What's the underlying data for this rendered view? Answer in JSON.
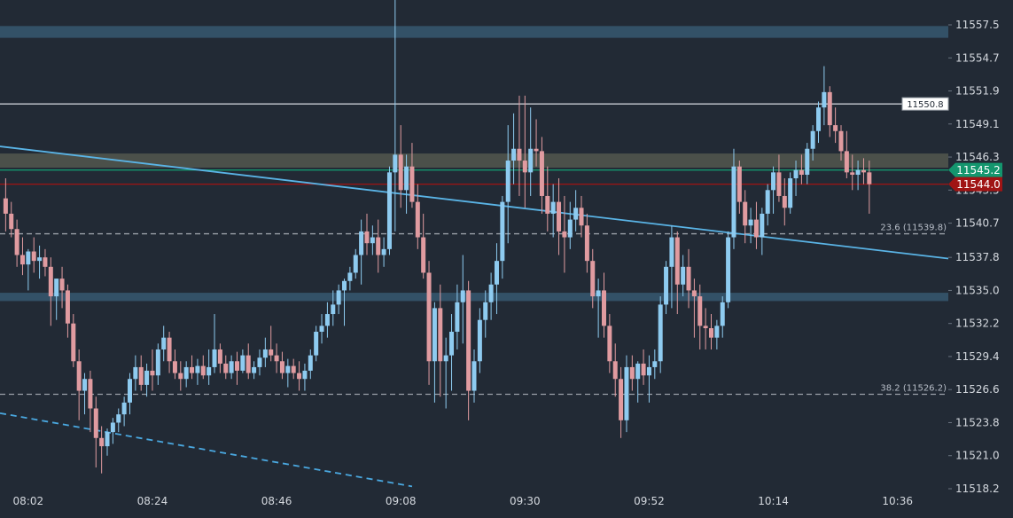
{
  "chart_data": {
    "type": "candlestick",
    "title": "",
    "xlabel": "",
    "ylabel": "",
    "ylim": [
      11518.2,
      11557.5
    ],
    "xlim": [
      "07:57",
      "10:45"
    ],
    "grid": false,
    "y_ticks": [
      "11557.5",
      "11554.7",
      "11551.9",
      "11549.1",
      "11546.3",
      "11543.5",
      "11540.7",
      "11537.8",
      "11535.0",
      "11532.2",
      "11529.4",
      "11526.6",
      "11523.8",
      "11521.0",
      "11518.2"
    ],
    "x_ticks": [
      "08:02",
      "08:24",
      "08:46",
      "09:08",
      "09:30",
      "09:52",
      "10:14",
      "10:36"
    ],
    "candles": [
      [
        "07:58",
        11542.8,
        11544.5,
        11540.0,
        11541.5
      ],
      [
        "07:59",
        11541.5,
        11542.5,
        11539.5,
        11540.2
      ],
      [
        "08:00",
        11540.2,
        11541.0,
        11537.0,
        11538.0
      ],
      [
        "08:01",
        11538.0,
        11539.5,
        11536.3,
        11537.2
      ],
      [
        "08:02",
        11537.2,
        11538.5,
        11535.0,
        11538.3
      ],
      [
        "08:03",
        11538.3,
        11539.5,
        11536.5,
        11537.5
      ],
      [
        "08:04",
        11537.5,
        11538.8,
        11536.0,
        11537.8
      ],
      [
        "08:05",
        11537.8,
        11538.5,
        11536.2,
        11537.0
      ],
      [
        "08:06",
        11537.0,
        11537.8,
        11532.0,
        11534.5
      ],
      [
        "08:07",
        11534.5,
        11536.0,
        11532.5,
        11536.0
      ],
      [
        "08:08",
        11536.0,
        11537.0,
        11533.5,
        11535.0
      ],
      [
        "08:09",
        11535.0,
        11535.5,
        11531.0,
        11532.2
      ],
      [
        "08:10",
        11532.2,
        11533.0,
        11528.5,
        11529.0
      ],
      [
        "08:11",
        11529.0,
        11530.0,
        11524.0,
        11526.5
      ],
      [
        "08:12",
        11526.5,
        11528.0,
        11524.5,
        11527.5
      ],
      [
        "08:13",
        11527.5,
        11528.2,
        11523.0,
        11525.0
      ],
      [
        "08:14",
        11525.0,
        11526.0,
        11520.0,
        11522.5
      ],
      [
        "08:15",
        11522.5,
        11523.5,
        11519.5,
        11521.8
      ],
      [
        "08:16",
        11521.8,
        11523.3,
        11521.0,
        11523.0
      ],
      [
        "08:17",
        11523.0,
        11524.2,
        11522.0,
        11523.8
      ],
      [
        "08:18",
        11523.8,
        11525.0,
        11523.0,
        11524.5
      ],
      [
        "08:19",
        11524.5,
        11526.0,
        11523.5,
        11525.5
      ],
      [
        "08:20",
        11525.5,
        11528.0,
        11524.5,
        11527.5
      ],
      [
        "08:21",
        11527.5,
        11529.5,
        11526.5,
        11528.5
      ],
      [
        "08:22",
        11528.5,
        11529.5,
        11526.5,
        11527.0
      ],
      [
        "08:23",
        11527.0,
        11528.8,
        11526.0,
        11528.2
      ],
      [
        "08:24",
        11528.2,
        11530.0,
        11526.5,
        11527.8
      ],
      [
        "08:25",
        11527.8,
        11530.5,
        11527.0,
        11530.0
      ],
      [
        "08:26",
        11530.0,
        11532.0,
        11529.0,
        11531.0
      ],
      [
        "08:27",
        11531.0,
        11531.5,
        11528.0,
        11529.0
      ],
      [
        "08:28",
        11529.0,
        11530.0,
        11527.5,
        11528.0
      ],
      [
        "08:29",
        11528.0,
        11529.0,
        11526.5,
        11527.5
      ],
      [
        "08:30",
        11527.5,
        11529.0,
        11526.8,
        11528.5
      ],
      [
        "08:31",
        11528.5,
        11529.5,
        11527.5,
        11528.0
      ],
      [
        "08:32",
        11528.0,
        11529.2,
        11527.0,
        11528.6
      ],
      [
        "08:33",
        11528.6,
        11529.5,
        11527.5,
        11527.8
      ],
      [
        "08:34",
        11527.8,
        11530.0,
        11527.0,
        11528.5
      ],
      [
        "08:35",
        11528.5,
        11533.0,
        11528.0,
        11530.0
      ],
      [
        "08:36",
        11530.0,
        11530.5,
        11528.0,
        11528.8
      ],
      [
        "08:37",
        11528.8,
        11529.5,
        11527.5,
        11528.0
      ],
      [
        "08:38",
        11528.0,
        11529.5,
        11527.5,
        11529.0
      ],
      [
        "08:39",
        11529.0,
        11529.8,
        11527.0,
        11528.2
      ],
      [
        "08:40",
        11528.2,
        11530.0,
        11528.0,
        11529.5
      ],
      [
        "08:41",
        11529.5,
        11530.5,
        11527.5,
        11528.0
      ],
      [
        "08:42",
        11528.0,
        11529.0,
        11527.5,
        11528.5
      ],
      [
        "08:43",
        11528.5,
        11530.0,
        11527.8,
        11529.3
      ],
      [
        "08:44",
        11529.3,
        11531.0,
        11528.5,
        11530.0
      ],
      [
        "08:45",
        11530.0,
        11532.0,
        11529.0,
        11529.5
      ],
      [
        "08:46",
        11529.5,
        11530.5,
        11528.0,
        11529.0
      ],
      [
        "08:47",
        11529.0,
        11529.8,
        11527.5,
        11528.0
      ],
      [
        "08:48",
        11528.0,
        11529.2,
        11526.8,
        11528.6
      ],
      [
        "08:49",
        11528.6,
        11529.2,
        11527.5,
        11528.0
      ],
      [
        "08:50",
        11528.0,
        11529.0,
        11526.5,
        11527.5
      ],
      [
        "08:51",
        11527.5,
        11528.8,
        11526.5,
        11528.2
      ],
      [
        "08:52",
        11528.2,
        11530.0,
        11527.5,
        11529.5
      ],
      [
        "08:53",
        11529.5,
        11532.0,
        11529.0,
        11531.5
      ],
      [
        "08:54",
        11531.5,
        11533.0,
        11530.5,
        11532.0
      ],
      [
        "08:55",
        11532.0,
        11534.0,
        11531.0,
        11533.0
      ],
      [
        "08:56",
        11533.0,
        11535.0,
        11532.0,
        11533.8
      ],
      [
        "08:57",
        11533.8,
        11535.5,
        11533.0,
        11535.0
      ],
      [
        "08:58",
        11535.0,
        11536.0,
        11532.0,
        11535.8
      ],
      [
        "08:59",
        11535.8,
        11537.0,
        11535.0,
        11536.5
      ],
      [
        "09:00",
        11536.5,
        11538.5,
        11536.0,
        11538.0
      ],
      [
        "09:01",
        11538.0,
        11541.0,
        11535.5,
        11540.0
      ],
      [
        "09:02",
        11540.0,
        11541.5,
        11538.0,
        11539.0
      ],
      [
        "09:03",
        11539.0,
        11540.5,
        11538.0,
        11539.5
      ],
      [
        "09:04",
        11539.5,
        11541.0,
        11536.5,
        11538.0
      ],
      [
        "09:05",
        11538.0,
        11539.5,
        11537.0,
        11538.5
      ],
      [
        "09:06",
        11538.5,
        11545.5,
        11538.0,
        11545.0
      ],
      [
        "09:07",
        11545.0,
        11561.0,
        11540.0,
        11546.5
      ],
      [
        "09:08",
        11546.5,
        11549.0,
        11542.0,
        11543.5
      ],
      [
        "09:09",
        11543.5,
        11546.5,
        11541.5,
        11545.5
      ],
      [
        "09:10",
        11545.5,
        11547.5,
        11542.0,
        11542.5
      ],
      [
        "09:11",
        11542.5,
        11544.0,
        11538.5,
        11539.5
      ],
      [
        "09:12",
        11539.5,
        11541.5,
        11536.0,
        11536.5
      ],
      [
        "09:13",
        11536.5,
        11537.5,
        11527.0,
        11529.0
      ],
      [
        "09:14",
        11529.0,
        11534.0,
        11525.5,
        11533.5
      ],
      [
        "09:15",
        11533.5,
        11535.5,
        11526.0,
        11529.0
      ],
      [
        "09:16",
        11529.0,
        11531.0,
        11525.0,
        11529.5
      ],
      [
        "09:17",
        11529.5,
        11533.0,
        11526.5,
        11531.5
      ],
      [
        "09:18",
        11531.5,
        11535.5,
        11530.0,
        11534.0
      ],
      [
        "09:19",
        11534.0,
        11538.0,
        11530.5,
        11535.0
      ],
      [
        "09:20",
        11535.0,
        11535.8,
        11524.0,
        11526.5
      ],
      [
        "09:21",
        11526.5,
        11530.0,
        11525.5,
        11529.0
      ],
      [
        "09:22",
        11529.0,
        11533.5,
        11528.0,
        11532.5
      ],
      [
        "09:23",
        11532.5,
        11535.0,
        11531.0,
        11534.0
      ],
      [
        "09:24",
        11534.0,
        11536.5,
        11532.5,
        11535.5
      ],
      [
        "09:25",
        11535.5,
        11539.0,
        11533.0,
        11537.5
      ],
      [
        "09:26",
        11537.5,
        11543.0,
        11536.0,
        11542.5
      ],
      [
        "09:27",
        11542.5,
        11549.0,
        11539.0,
        11546.0
      ],
      [
        "09:28",
        11546.0,
        11550.0,
        11544.0,
        11547.0
      ],
      [
        "09:29",
        11547.0,
        11551.5,
        11543.0,
        11546.0
      ],
      [
        "09:30",
        11546.0,
        11551.5,
        11542.0,
        11545.0
      ],
      [
        "09:31",
        11545.0,
        11550.5,
        11543.0,
        11547.0
      ],
      [
        "09:32",
        11547.0,
        11549.5,
        11545.5,
        11546.8
      ],
      [
        "09:33",
        11546.8,
        11548.0,
        11541.5,
        11543.0
      ],
      [
        "09:34",
        11543.0,
        11545.5,
        11540.0,
        11541.5
      ],
      [
        "09:35",
        11541.5,
        11544.0,
        11539.5,
        11542.5
      ],
      [
        "09:36",
        11542.5,
        11544.5,
        11538.0,
        11540.0
      ],
      [
        "09:37",
        11540.0,
        11543.0,
        11536.5,
        11539.5
      ],
      [
        "09:38",
        11539.5,
        11542.5,
        11538.5,
        11541.0
      ],
      [
        "09:39",
        11541.0,
        11543.5,
        11540.0,
        11542.0
      ],
      [
        "09:40",
        11542.0,
        11543.0,
        11539.5,
        11540.5
      ],
      [
        "09:41",
        11540.5,
        11541.5,
        11536.5,
        11537.5
      ],
      [
        "09:42",
        11537.5,
        11538.5,
        11533.5,
        11534.5
      ],
      [
        "09:43",
        11534.5,
        11536.0,
        11531.0,
        11535.0
      ],
      [
        "09:44",
        11535.0,
        11536.5,
        11531.0,
        11532.0
      ],
      [
        "09:45",
        11532.0,
        11533.0,
        11528.0,
        11529.0
      ],
      [
        "09:46",
        11529.0,
        11530.5,
        11526.0,
        11527.5
      ],
      [
        "09:47",
        11527.5,
        11528.5,
        11522.5,
        11524.0
      ],
      [
        "09:48",
        11524.0,
        11529.5,
        11523.0,
        11528.5
      ],
      [
        "09:49",
        11528.5,
        11529.5,
        11526.5,
        11527.5
      ],
      [
        "09:50",
        11527.5,
        11529.0,
        11525.5,
        11528.8
      ],
      [
        "09:51",
        11528.8,
        11530.0,
        11527.0,
        11527.8
      ],
      [
        "09:52",
        11527.8,
        11529.5,
        11525.5,
        11528.5
      ],
      [
        "09:53",
        11528.5,
        11530.0,
        11527.5,
        11529.0
      ],
      [
        "09:54",
        11529.0,
        11534.5,
        11528.0,
        11533.8
      ],
      [
        "09:55",
        11533.8,
        11537.5,
        11533.0,
        11537.0
      ],
      [
        "09:56",
        11537.0,
        11540.5,
        11533.5,
        11539.5
      ],
      [
        "09:57",
        11539.5,
        11540.0,
        11533.0,
        11535.5
      ],
      [
        "09:58",
        11535.5,
        11538.0,
        11534.5,
        11537.0
      ],
      [
        "09:59",
        11537.0,
        11538.5,
        11533.5,
        11535.0
      ],
      [
        "10:00",
        11535.0,
        11536.0,
        11531.0,
        11534.5
      ],
      [
        "10:01",
        11534.5,
        11535.5,
        11530.0,
        11532.0
      ],
      [
        "10:02",
        11532.0,
        11533.5,
        11530.0,
        11531.8
      ],
      [
        "10:03",
        11531.8,
        11533.0,
        11530.0,
        11531.0
      ],
      [
        "10:04",
        11531.0,
        11532.5,
        11530.0,
        11532.0
      ],
      [
        "10:05",
        11532.0,
        11534.5,
        11531.0,
        11534.0
      ],
      [
        "10:06",
        11534.0,
        11540.0,
        11533.5,
        11539.5
      ],
      [
        "10:07",
        11539.5,
        11547.0,
        11538.5,
        11545.5
      ],
      [
        "10:08",
        11545.5,
        11546.0,
        11541.5,
        11542.5
      ],
      [
        "10:09",
        11542.5,
        11543.5,
        11539.0,
        11540.5
      ],
      [
        "10:10",
        11540.5,
        11542.0,
        11539.0,
        11541.0
      ],
      [
        "10:11",
        11541.0,
        11542.5,
        11538.5,
        11539.5
      ],
      [
        "10:12",
        11539.5,
        11542.0,
        11538.0,
        11541.5
      ],
      [
        "10:13",
        11541.5,
        11544.0,
        11540.5,
        11543.5
      ],
      [
        "10:14",
        11543.5,
        11545.5,
        11541.5,
        11545.0
      ],
      [
        "10:15",
        11545.0,
        11546.5,
        11542.5,
        11543.0
      ],
      [
        "10:16",
        11543.0,
        11544.5,
        11540.5,
        11542.0
      ],
      [
        "10:17",
        11542.0,
        11545.0,
        11541.5,
        11544.5
      ],
      [
        "10:18",
        11544.5,
        11546.0,
        11543.0,
        11545.2
      ],
      [
        "10:19",
        11545.2,
        11546.5,
        11544.0,
        11544.8
      ],
      [
        "10:20",
        11544.8,
        11547.5,
        11544.0,
        11547.0
      ],
      [
        "10:21",
        11547.0,
        11549.0,
        11546.0,
        11548.5
      ],
      [
        "10:22",
        11548.5,
        11551.0,
        11547.5,
        11550.5
      ],
      [
        "10:23",
        11550.5,
        11554.0,
        11549.0,
        11551.8
      ],
      [
        "10:24",
        11551.8,
        11552.3,
        11548.0,
        11549.0
      ],
      [
        "10:25",
        11549.0,
        11550.5,
        11547.5,
        11548.5
      ],
      [
        "10:26",
        11548.5,
        11549.0,
        11546.0,
        11546.8
      ],
      [
        "10:27",
        11546.8,
        11548.5,
        11544.5,
        11545.0
      ],
      [
        "10:28",
        11545.0,
        11546.5,
        11543.5,
        11544.8
      ],
      [
        "10:29",
        11544.8,
        11546.0,
        11543.5,
        11545.2
      ],
      [
        "10:30",
        11545.2,
        11546.2,
        11544.0,
        11545.0
      ],
      [
        "10:31",
        11545.0,
        11546.0,
        11541.5,
        11544.0
      ]
    ],
    "horizontal_levels": [
      {
        "price": 11550.8,
        "color": "#c8ccd2",
        "label": "11550.8"
      },
      {
        "price": 11545.2,
        "color": "#14966e",
        "label": "11545.2"
      },
      {
        "price": 11544.0,
        "color": "#a01414",
        "label": "11544.0"
      }
    ],
    "fib_levels": [
      {
        "price": 11539.8,
        "label": "23.6 (11539.8)"
      },
      {
        "price": 11526.2,
        "label": "38.2 (11526.2)"
      }
    ],
    "zones": [
      {
        "from": 11556.4,
        "to": 11557.4,
        "color": "#3a5f78"
      },
      {
        "from": 11545.4,
        "to": 11546.6,
        "color": "#5a5e52"
      },
      {
        "from": 11534.1,
        "to": 11534.8,
        "color": "#3a5f78"
      }
    ],
    "trendlines": [
      {
        "from": [
          "07:57",
          11547.2
        ],
        "to": [
          "10:45",
          11537.7
        ],
        "color": "#5ab4e6",
        "style": "solid"
      },
      {
        "from": [
          "07:57",
          11524.6
        ],
        "to": [
          "09:10",
          11518.4
        ],
        "color": "#4aa8e0",
        "style": "dashed"
      }
    ],
    "colors": {
      "background": "#222a35",
      "up": "#8ecbf0",
      "down": "#e09ba0",
      "text": "#d4d8de"
    }
  }
}
